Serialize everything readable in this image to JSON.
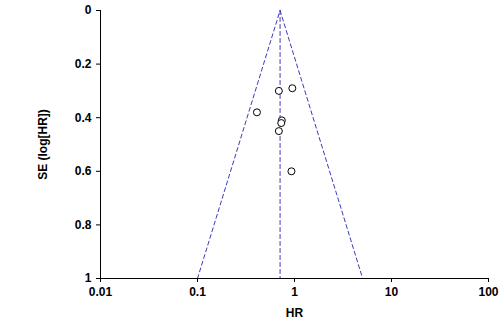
{
  "chart_data": {
    "type": "scatter",
    "x_label": "HR",
    "y_label": "SE (log[HR])",
    "log": "x",
    "grid": false,
    "xlim": [
      0.01,
      100
    ],
    "xticks": [
      0.01,
      0.1,
      1,
      10,
      100
    ],
    "ylim": [
      0,
      1
    ],
    "yticks": [
      0,
      0.2,
      0.4,
      0.6,
      0.8,
      1
    ],
    "x": [
      0.41,
      0.69,
      0.95,
      0.74,
      0.73,
      0.69,
      0.93
    ],
    "values": [
      0.38,
      0.3,
      0.29,
      0.41,
      0.42,
      0.45,
      0.6
    ],
    "marker": "circle",
    "color": "#000000",
    "lines": [
      {
        "x": [
          0.1,
          0.71
        ],
        "values": [
          1,
          0
        ],
        "color": "#3b3bb8",
        "line_style": "dashed"
      },
      {
        "x": [
          0.71,
          5.04
        ],
        "values": [
          0,
          1
        ],
        "color": "#3b3bb8",
        "line_style": "dashed"
      },
      {
        "x": [
          0.71,
          0.71
        ],
        "values": [
          0,
          1
        ],
        "color": "#3b3bb8",
        "line_style": "dashed"
      }
    ]
  }
}
